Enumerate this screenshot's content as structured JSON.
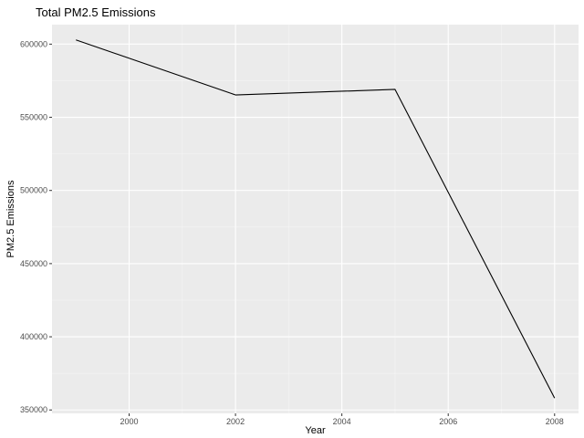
{
  "chart_data": {
    "type": "line",
    "title": "Total PM2.5 Emissions",
    "xlabel": "Year",
    "ylabel": "PM2.5 Emissions",
    "x": [
      1999,
      2002,
      2005,
      2008
    ],
    "values": [
      602883,
      565280,
      569070,
      358110
    ],
    "xlim": [
      1998.55,
      2008.45
    ],
    "ylim": [
      347661,
      613319
    ],
    "x_ticks": [
      2000,
      2002,
      2004,
      2006,
      2008
    ],
    "x_tick_labels": [
      "2000",
      "2002",
      "2004",
      "2006",
      "2008"
    ],
    "y_ticks": [
      350000,
      400000,
      450000,
      500000,
      550000,
      600000
    ],
    "y_tick_labels": [
      "350000",
      "400000",
      "450000",
      "500000",
      "550000",
      "600000"
    ],
    "grid": true,
    "legend": "none",
    "colors": {
      "panel_background": "#ebebeb",
      "grid_major": "#ffffff",
      "grid_minor": "#f5f5f5",
      "line": "#000000",
      "tick_text": "#4d4d4d"
    }
  }
}
